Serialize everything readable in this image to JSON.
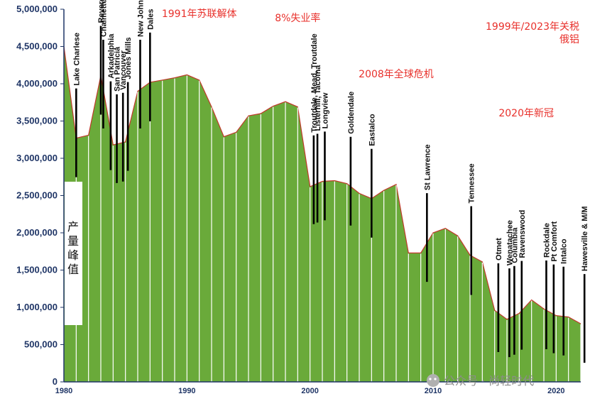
{
  "chart_data": {
    "type": "area",
    "title": "",
    "xlabel": "",
    "ylabel": "",
    "xlim": [
      1980,
      2022
    ],
    "ylim": [
      0,
      5000000
    ],
    "x_ticks": [
      "1980",
      "1990",
      "2000",
      "2010",
      "2020"
    ],
    "y_ticks": [
      "0",
      "500,000",
      "1,000,000",
      "1,500,000",
      "2,000,000",
      "2,500,000",
      "3,000,000",
      "3,500,000",
      "4,000,000",
      "4,500,000",
      "5,000,000"
    ],
    "grid": false,
    "colors": {
      "area_fill": "#6aaa3a",
      "area_outline": "#c0392b",
      "stripe": "#ffffff",
      "closure_bar": "#000000",
      "annotation": "#e8302b"
    },
    "x": [
      1980,
      1981,
      1982,
      1983,
      1984,
      1985,
      1986,
      1987,
      1988,
      1989,
      1990,
      1991,
      1992,
      1993,
      1994,
      1995,
      1996,
      1997,
      1998,
      1999,
      2000,
      2001,
      2002,
      2003,
      2004,
      2005,
      2006,
      2007,
      2008,
      2009,
      2010,
      2011,
      2012,
      2013,
      2014,
      2015,
      2016,
      2017,
      2018,
      2019,
      2020,
      2021,
      2022
    ],
    "values": [
      4500000,
      3270000,
      3310000,
      4110000,
      3180000,
      3220000,
      3900000,
      4020000,
      4050000,
      4080000,
      4120000,
      4050000,
      3690000,
      3290000,
      3350000,
      3570000,
      3600000,
      3700000,
      3760000,
      3690000,
      2620000,
      2690000,
      2700000,
      2660000,
      2530000,
      2460000,
      2570000,
      2650000,
      1730000,
      1730000,
      2000000,
      2060000,
      1960000,
      1700000,
      1610000,
      960000,
      840000,
      920000,
      1100000,
      980000,
      890000,
      870000,
      780000
    ],
    "closures": [
      {
        "name": "Lake Charlese",
        "year": 1981
      },
      {
        "name": "Revere",
        "year": 1983
      },
      {
        "name": "Chalmette",
        "year": 1983.2
      },
      {
        "name": "Arkadelphia",
        "year": 1983.8
      },
      {
        "name": "San Patricia",
        "year": 1984.3
      },
      {
        "name": "Vancouver",
        "year": 1984.8
      },
      {
        "name": "Jones Mills",
        "year": 1985.2
      },
      {
        "name": "New Johnson",
        "year": 1986.2
      },
      {
        "name": "Dales",
        "year": 1987
      },
      {
        "name": "Troutdale, Mead, Troutdale",
        "year": 2000.3
      },
      {
        "name": "Listerhill, Tacoma",
        "year": 2000.6
      },
      {
        "name": "Longview",
        "year": 2001.2
      },
      {
        "name": "Goldendale",
        "year": 2003.3
      },
      {
        "name": "Eastalco",
        "year": 2005
      },
      {
        "name": "St Lawrence",
        "year": 2009.5
      },
      {
        "name": "Tennessee",
        "year": 2013.1
      },
      {
        "name": "Otmet",
        "year": 2015.3
      },
      {
        "name": "Wenatachee",
        "year": 2016.2
      },
      {
        "name": "Columbia",
        "year": 2016.6
      },
      {
        "name": "Ravenswood",
        "year": 2017.2
      },
      {
        "name": "Rockdale",
        "year": 2019.2
      },
      {
        "name": "Pt Comfort",
        "year": 2019.8
      },
      {
        "name": "Intalco",
        "year": 2020.6
      },
      {
        "name": "Hawesville & M/M",
        "year": 2022.3
      }
    ],
    "annotations": [
      {
        "text": "1991年苏联解体",
        "year": 1991
      },
      {
        "text": "8%失业率",
        "year": 1999
      },
      {
        "text": "2008年全球危机",
        "year": 2007
      },
      {
        "text": "2020年新冠",
        "year": 2021
      },
      {
        "text": "1999年/2023年关税",
        "year": 2022
      },
      {
        "text": "俄铝",
        "year": 2022
      }
    ],
    "side_label": [
      "产",
      "量",
      "峰",
      "值"
    ]
  },
  "watermark": "公众号 · 尚轻时代"
}
